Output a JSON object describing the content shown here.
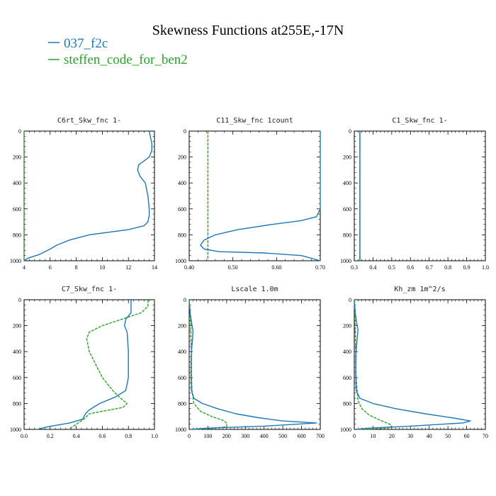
{
  "figure": {
    "title": "Skewness Functions at255E,-17N",
    "legend": [
      {
        "label": "037_f2c",
        "color": "#1f77b4"
      },
      {
        "label": "steffen_code_for_ben2",
        "color": "#2ca02c"
      }
    ]
  },
  "chart_data": [
    {
      "type": "line",
      "title": "C6rt_Skw_fnc   1-",
      "xlim": [
        4,
        14
      ],
      "ylim": [
        0,
        1000
      ],
      "xticks": [
        "4",
        "6",
        "8",
        "10",
        "12",
        "14"
      ],
      "yticks": [
        "0",
        "200",
        "400",
        "600",
        "800",
        "1000"
      ],
      "series": [
        {
          "name": "037_f2c",
          "color": "#1f77b4",
          "style": "solid",
          "x": [
            13.6,
            13.7,
            13.8,
            13.8,
            13.6,
            13.2,
            12.8,
            12.7,
            12.9,
            13.3,
            13.5,
            13.6,
            13.6,
            13.5,
            13.2,
            12.0,
            9.0,
            7.5,
            6.5,
            6.0,
            5.2,
            4.3,
            4.0
          ],
          "y": [
            0,
            50,
            100,
            150,
            200,
            230,
            260,
            300,
            350,
            400,
            500,
            600,
            650,
            700,
            730,
            760,
            800,
            840,
            880,
            910,
            950,
            980,
            1000
          ]
        },
        {
          "name": "steffen_code_for_ben2",
          "color": "#2ca02c",
          "style": "dashed",
          "x": [
            4,
            4
          ],
          "y": [
            0,
            1000
          ]
        }
      ]
    },
    {
      "type": "line",
      "title": "C11_Skw_fnc   1count",
      "xlim": [
        0.35,
        0.7
      ],
      "ylim": [
        0,
        1000
      ],
      "xticks": [
        "0.40",
        "0.50",
        "0.60",
        "0.70"
      ],
      "yticks": [
        "0",
        "200",
        "400",
        "600",
        "800",
        "1000"
      ],
      "series": [
        {
          "name": "037_f2c",
          "color": "#1f77b4",
          "style": "solid",
          "x": [
            0.7,
            0.7,
            0.69,
            0.65,
            0.57,
            0.48,
            0.42,
            0.39,
            0.38,
            0.39,
            0.43,
            0.55,
            0.65,
            0.7
          ],
          "y": [
            0,
            600,
            660,
            690,
            720,
            760,
            800,
            840,
            880,
            910,
            930,
            940,
            960,
            1000
          ]
        },
        {
          "name": "steffen_code_for_ben2",
          "color": "#2ca02c",
          "style": "dashed",
          "x": [
            0.4,
            0.4
          ],
          "y": [
            0,
            1000
          ]
        }
      ]
    },
    {
      "type": "line",
      "title": "C1_Skw_fnc   1-",
      "xlim": [
        0.3,
        1.0
      ],
      "ylim": [
        0,
        1000
      ],
      "xticks": [
        "0.3",
        "0.4",
        "0.5",
        "0.6",
        "0.7",
        "0.8",
        "0.9",
        "1.0"
      ],
      "yticks": [
        "0",
        "200",
        "400",
        "600",
        "800",
        "1000"
      ],
      "series": [
        {
          "name": "037_f2c",
          "color": "#1f77b4",
          "style": "solid",
          "x": [
            0.33,
            0.33
          ],
          "y": [
            0,
            1000
          ]
        },
        {
          "name": "steffen_code_for_ben2",
          "color": "#2ca02c",
          "style": "dashed",
          "x": [
            0.33,
            0.33
          ],
          "y": [
            0,
            1000
          ]
        }
      ]
    },
    {
      "type": "line",
      "title": "C7_Skw_fnc   1-",
      "xlim": [
        0.0,
        1.0
      ],
      "ylim": [
        0,
        1000
      ],
      "xticks": [
        "0.0",
        "0.2",
        "0.4",
        "0.6",
        "0.8",
        "1.0"
      ],
      "yticks": [
        "0",
        "200",
        "400",
        "600",
        "800",
        "1000"
      ],
      "series": [
        {
          "name": "037_f2c",
          "color": "#1f77b4",
          "style": "solid",
          "x": [
            0.82,
            0.82,
            0.78,
            0.77,
            0.79,
            0.8,
            0.8,
            0.8,
            0.78,
            0.7,
            0.58,
            0.5,
            0.47,
            0.45,
            0.35,
            0.18,
            0.1
          ],
          "y": [
            0,
            100,
            150,
            200,
            250,
            400,
            500,
            600,
            700,
            750,
            800,
            850,
            880,
            920,
            950,
            980,
            1000
          ]
        },
        {
          "name": "steffen_code_for_ben2",
          "color": "#2ca02c",
          "style": "dashed",
          "x": [
            0.95,
            0.95,
            0.9,
            0.6,
            0.5,
            0.48,
            0.5,
            0.55,
            0.6,
            0.68,
            0.74,
            0.79,
            0.76,
            0.6,
            0.5,
            0.46,
            0.4,
            0.34
          ],
          "y": [
            0,
            50,
            100,
            200,
            250,
            300,
            400,
            500,
            600,
            700,
            760,
            800,
            830,
            860,
            880,
            920,
            960,
            1000
          ]
        }
      ]
    },
    {
      "type": "line",
      "title": "Lscale   1.0m",
      "xlim": [
        0,
        700
      ],
      "ylim": [
        0,
        1000
      ],
      "xticks": [
        "0",
        "100",
        "200",
        "300",
        "400",
        "500",
        "600",
        "700"
      ],
      "yticks": [
        "0",
        "200",
        "400",
        "600",
        "800",
        "1000"
      ],
      "series": [
        {
          "name": "037_f2c",
          "color": "#1f77b4",
          "style": "solid",
          "x": [
            0,
            5,
            15,
            20,
            18,
            12,
            10,
            10,
            12,
            25,
            70,
            150,
            250,
            370,
            500,
            680,
            400,
            100,
            5
          ],
          "y": [
            0,
            100,
            200,
            240,
            300,
            400,
            500,
            600,
            700,
            760,
            800,
            840,
            880,
            910,
            935,
            950,
            975,
            990,
            1000
          ]
        },
        {
          "name": "steffen_code_for_ben2",
          "color": "#2ca02c",
          "style": "dashed",
          "x": [
            0,
            5,
            8,
            10,
            12,
            12,
            12,
            15,
            25,
            60,
            120,
            180,
            200,
            200,
            100,
            20
          ],
          "y": [
            0,
            100,
            200,
            300,
            400,
            500,
            600,
            700,
            800,
            860,
            900,
            930,
            950,
            980,
            995,
            1000
          ]
        }
      ]
    },
    {
      "type": "line",
      "title": "Kh_zm   1m^2/s",
      "xlim": [
        0,
        70
      ],
      "ylim": [
        0,
        1000
      ],
      "xticks": [
        "0",
        "10",
        "20",
        "30",
        "40",
        "50",
        "60",
        "70"
      ],
      "yticks": [
        "0",
        "200",
        "400",
        "600",
        "800",
        "1000"
      ],
      "series": [
        {
          "name": "037_f2c",
          "color": "#1f77b4",
          "style": "solid",
          "x": [
            0,
            0.5,
            1.5,
            2.0,
            1.5,
            1.0,
            0.8,
            0.8,
            1.0,
            3,
            10,
            22,
            38,
            52,
            62,
            58,
            30,
            8,
            1
          ],
          "y": [
            0,
            100,
            200,
            230,
            300,
            400,
            500,
            600,
            700,
            760,
            800,
            840,
            880,
            910,
            935,
            950,
            975,
            990,
            1000
          ]
        },
        {
          "name": "steffen_code_for_ben2",
          "color": "#2ca02c",
          "style": "dashed",
          "x": [
            0,
            0.3,
            0.5,
            0.6,
            0.7,
            0.8,
            1.0,
            1.5,
            2,
            4,
            8,
            14,
            19,
            20,
            12,
            2
          ],
          "y": [
            0,
            100,
            200,
            300,
            400,
            500,
            600,
            700,
            780,
            840,
            890,
            930,
            960,
            985,
            995,
            1000
          ]
        }
      ]
    }
  ]
}
